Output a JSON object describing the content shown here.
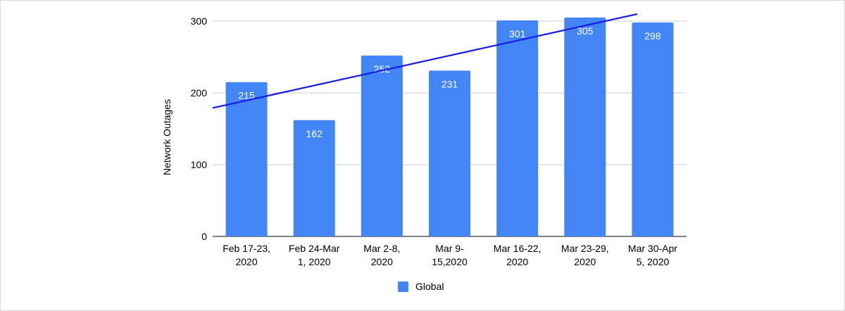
{
  "chart_data": {
    "type": "bar",
    "categories": [
      [
        "Feb 17-23,",
        "2020"
      ],
      [
        "Feb 24-Mar",
        "1, 2020"
      ],
      [
        "Mar 2-8,",
        "2020"
      ],
      [
        "Mar 9-",
        "15,2020"
      ],
      [
        "Mar 16-22,",
        "2020"
      ],
      [
        "Mar 23-29,",
        "2020"
      ],
      [
        "Mar 30-Apr",
        "5, 2020"
      ]
    ],
    "series": [
      {
        "name": "Global",
        "values": [
          215,
          162,
          252,
          231,
          301,
          305,
          298
        ]
      }
    ],
    "data_labels": [
      "215",
      "162",
      "252",
      "231",
      "301",
      "305",
      "298"
    ],
    "trendline": {
      "type": "linear",
      "color": "#1a1ae6"
    },
    "ylabel": "Network Outages",
    "xlabel": "",
    "ylim": [
      0,
      300
    ],
    "yticks": [
      0,
      100,
      200,
      300
    ],
    "grid": true,
    "legend_position": "bottom",
    "colors": {
      "bar": "#4285f4",
      "grid": "#cccccc",
      "axis": "#333333",
      "trend": "#1a1ae6"
    }
  }
}
